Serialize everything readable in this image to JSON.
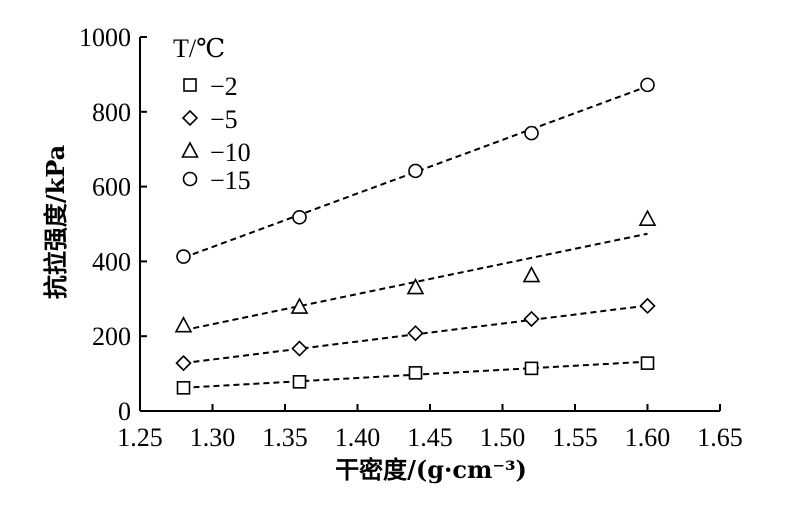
{
  "chart_data": {
    "type": "scatter",
    "xlabel": "干密度/(g·cm⁻³)",
    "ylabel": "抗拉强度/kPa",
    "xlim": [
      1.25,
      1.65
    ],
    "ylim": [
      0,
      1000
    ],
    "x_ticks": [
      "1.25",
      "1.30",
      "1.35",
      "1.40",
      "1.45",
      "1.50",
      "1.55",
      "1.60",
      "1.65"
    ],
    "y_ticks": [
      "0",
      "200",
      "400",
      "600",
      "800",
      "1000"
    ],
    "legend": {
      "title": "T/℃",
      "placement": "top-left"
    },
    "series": [
      {
        "name": "−2",
        "marker": "square",
        "x": [
          1.28,
          1.36,
          1.44,
          1.52,
          1.6
        ],
        "y": [
          62,
          78,
          102,
          114,
          128
        ],
        "fit": [
          [
            1.28,
            62
          ],
          [
            1.6,
            132
          ]
        ]
      },
      {
        "name": "−5",
        "marker": "diamond",
        "x": [
          1.28,
          1.36,
          1.44,
          1.52,
          1.6
        ],
        "y": [
          128,
          167,
          208,
          246,
          281
        ],
        "fit": [
          [
            1.28,
            128
          ],
          [
            1.6,
            282
          ]
        ]
      },
      {
        "name": "−10",
        "marker": "triangle",
        "x": [
          1.28,
          1.36,
          1.44,
          1.52,
          1.6
        ],
        "y": [
          228,
          278,
          330,
          362,
          513
        ],
        "fit": [
          [
            1.28,
            216
          ],
          [
            1.6,
            474
          ]
        ]
      },
      {
        "name": "−15",
        "marker": "circle",
        "x": [
          1.28,
          1.36,
          1.44,
          1.52,
          1.6
        ],
        "y": [
          413,
          518,
          642,
          743,
          872
        ],
        "fit": [
          [
            1.28,
            410
          ],
          [
            1.6,
            868
          ]
        ]
      }
    ]
  }
}
